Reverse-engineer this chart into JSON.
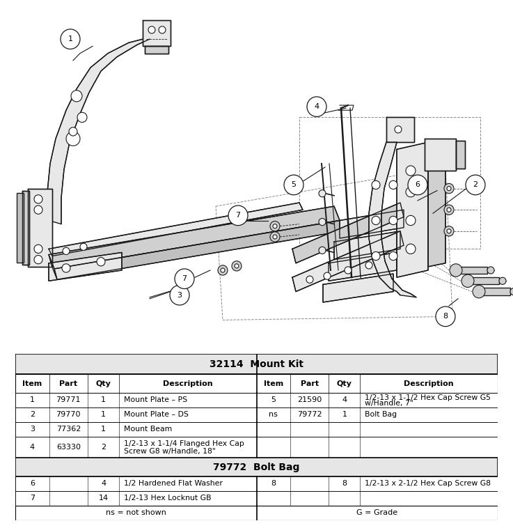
{
  "title": "32114  Mount Kit",
  "subtitle2": "79772  Bolt Bag",
  "bg_color": "#ffffff",
  "mount_kit_rows": [
    [
      "1",
      "79771",
      "1",
      "Mount Plate – PS",
      "5",
      "21590",
      "4",
      "1/2-13 x 1-1/2 Hex Cap Screw G5\nw/Handle, 7\""
    ],
    [
      "2",
      "79770",
      "1",
      "Mount Plate – DS",
      "ns",
      "79772",
      "1",
      "Bolt Bag"
    ],
    [
      "3",
      "77362",
      "1",
      "Mount Beam",
      "",
      "",
      "",
      ""
    ],
    [
      "4",
      "63330",
      "2",
      "1/2-13 x 1-1/4 Flanged Hex Cap\nScrew G8 w/Handle, 18\"",
      "",
      "",
      "",
      ""
    ]
  ],
  "bolt_bag_rows": [
    [
      "6",
      "",
      "4",
      "1/2 Hardened Flat Washer",
      "8",
      "",
      "8",
      "1/2-13 x 2-1/2 Hex Cap Screw G8"
    ],
    [
      "7",
      "",
      "14",
      "1/2-13 Hex Locknut GB",
      "",
      "",
      "",
      ""
    ]
  ],
  "footer_left": "ns = not shown",
  "footer_right": "G = Grade",
  "col_headers": [
    "Item",
    "Part",
    "Qty",
    "Description",
    "Item",
    "Part",
    "Qty",
    "Description"
  ]
}
